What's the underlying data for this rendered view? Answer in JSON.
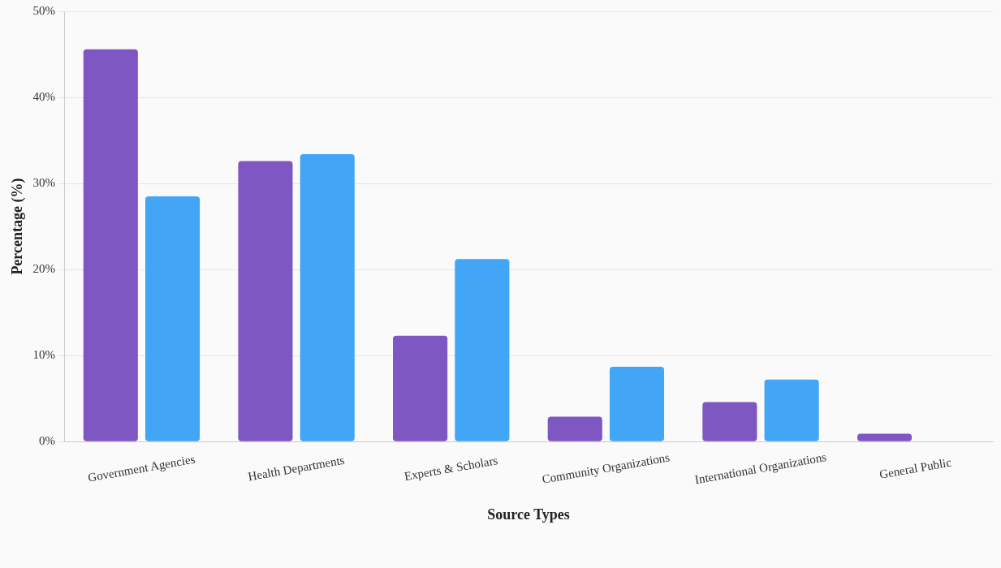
{
  "chart_data": {
    "type": "bar",
    "categories": [
      "Government Agencies",
      "Health Departments",
      "Experts & Scholars",
      "Community Organizations",
      "International Organizations",
      "General Public"
    ],
    "series": [
      {
        "color": "#7e57c2",
        "values": [
          45.6,
          32.6,
          12.3,
          2.9,
          4.6,
          0.9
        ]
      },
      {
        "color": "#42a5f5",
        "values": [
          28.5,
          33.4,
          21.2,
          8.7,
          7.2,
          null
        ]
      }
    ],
    "xlabel": "Source Types",
    "ylabel": "Percentage (%)",
    "ylim": [
      0,
      50
    ],
    "yticks": [
      {
        "value": 0,
        "label": "0%"
      },
      {
        "value": 10,
        "label": "10%"
      },
      {
        "value": 20,
        "label": "20%"
      },
      {
        "value": 30,
        "label": "30%"
      },
      {
        "value": 40,
        "label": "40%"
      },
      {
        "value": 50,
        "label": "50%"
      }
    ],
    "grid": "y"
  }
}
